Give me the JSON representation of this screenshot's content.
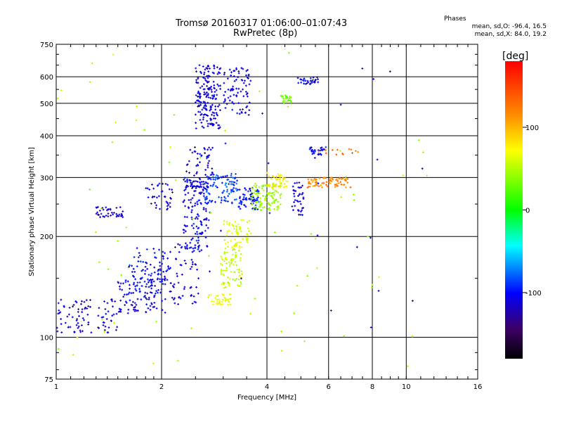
{
  "header": {
    "title": "Tromsø 20160317 01:06:00–01:07:43",
    "subtitle": "RwPretec (8p)"
  },
  "phases": {
    "heading": "Phases",
    "line_o": "mean, sd,O:  -96.4, 16.5",
    "line_x": "mean, sd,X:  84.0, 19.2"
  },
  "chart_data": {
    "type": "scatter",
    "xlabel": "Frequency [MHz]",
    "ylabel": "Stationary phase Virtual Height [km]",
    "xscale": "log",
    "yscale": "log",
    "xlim": [
      1,
      16
    ],
    "ylim": [
      75,
      750
    ],
    "grid": true,
    "xticks": [
      1,
      2,
      4,
      6,
      8,
      10,
      16
    ],
    "xtick_labels": [
      "1",
      "2",
      "4",
      "6",
      "8",
      "10",
      "16"
    ],
    "yticks": [
      75,
      100,
      200,
      300,
      400,
      500,
      600,
      750
    ],
    "ytick_labels": [
      "75",
      "100",
      "200",
      "300",
      "400",
      "500",
      "600",
      "750"
    ],
    "colorbar": {
      "label": "[deg]",
      "range": [
        -180,
        180
      ],
      "ticks": [
        100,
        0,
        -100
      ],
      "tick_labels": [
        "100",
        "0",
        "-100"
      ]
    },
    "clusters": [
      {
        "x": [
          1.0,
          1.5
        ],
        "y": [
          103,
          130
        ],
        "phase": -112,
        "n": 90
      },
      {
        "x": [
          1.5,
          2.05
        ],
        "y": [
          118,
          150
        ],
        "phase": -108,
        "n": 110
      },
      {
        "x": [
          1.6,
          2.1
        ],
        "y": [
          140,
          185
        ],
        "phase": -102,
        "n": 80
      },
      {
        "x": [
          1.3,
          1.55
        ],
        "y": [
          228,
          245
        ],
        "phase": -118,
        "n": 40
      },
      {
        "x": [
          1.8,
          2.15
        ],
        "y": [
          240,
          290
        ],
        "phase": -112,
        "n": 40
      },
      {
        "x": [
          2.1,
          2.55
        ],
        "y": [
          125,
          190
        ],
        "phase": -110,
        "n": 60
      },
      {
        "x": [
          2.3,
          2.75
        ],
        "y": [
          180,
          300
        ],
        "phase": -105,
        "n": 160
      },
      {
        "x": [
          2.35,
          2.8
        ],
        "y": [
          280,
          370
        ],
        "phase": -108,
        "n": 60
      },
      {
        "x": [
          2.5,
          2.95
        ],
        "y": [
          420,
          650
        ],
        "phase": -110,
        "n": 180
      },
      {
        "x": [
          2.65,
          3.3
        ],
        "y": [
          250,
          310
        ],
        "phase": -88,
        "n": 90
      },
      {
        "x": [
          3.0,
          3.6
        ],
        "y": [
          460,
          640
        ],
        "phase": -110,
        "n": 80
      },
      {
        "x": [
          3.3,
          3.8
        ],
        "y": [
          240,
          280
        ],
        "phase": -98,
        "n": 70
      },
      {
        "x": [
          2.7,
          3.15
        ],
        "y": [
          125,
          135
        ],
        "phase": 85,
        "n": 40
      },
      {
        "x": [
          2.95,
          3.4
        ],
        "y": [
          140,
          185
        ],
        "phase": 70,
        "n": 80
      },
      {
        "x": [
          3.0,
          3.6
        ],
        "y": [
          185,
          225
        ],
        "phase": 82,
        "n": 70
      },
      {
        "x": [
          3.6,
          4.4
        ],
        "y": [
          240,
          290
        ],
        "phase": 55,
        "n": 110
      },
      {
        "x": [
          4.0,
          4.6
        ],
        "y": [
          280,
          310
        ],
        "phase": 95,
        "n": 40
      },
      {
        "x": [
          4.35,
          4.7
        ],
        "y": [
          500,
          530
        ],
        "phase": 40,
        "n": 25
      },
      {
        "x": [
          4.7,
          5.1
        ],
        "y": [
          230,
          290
        ],
        "phase": -110,
        "n": 40
      },
      {
        "x": [
          4.9,
          5.6
        ],
        "y": [
          570,
          600
        ],
        "phase": -105,
        "n": 35
      },
      {
        "x": [
          5.3,
          5.9
        ],
        "y": [
          350,
          370
        ],
        "phase": -100,
        "n": 30
      },
      {
        "x": [
          5.2,
          7.0
        ],
        "y": [
          280,
          300
        ],
        "phase": 130,
        "n": 70
      },
      {
        "x": [
          5.6,
          7.3
        ],
        "y": [
          348,
          365
        ],
        "phase": 140,
        "n": 15
      },
      {
        "x": [
          1.0,
          12.0
        ],
        "y": [
          80,
          720
        ],
        "phase": 60,
        "n": 70
      },
      {
        "x": [
          2.4,
          12.0
        ],
        "y": [
          88,
          650
        ],
        "phase": -110,
        "n": 25
      }
    ]
  }
}
